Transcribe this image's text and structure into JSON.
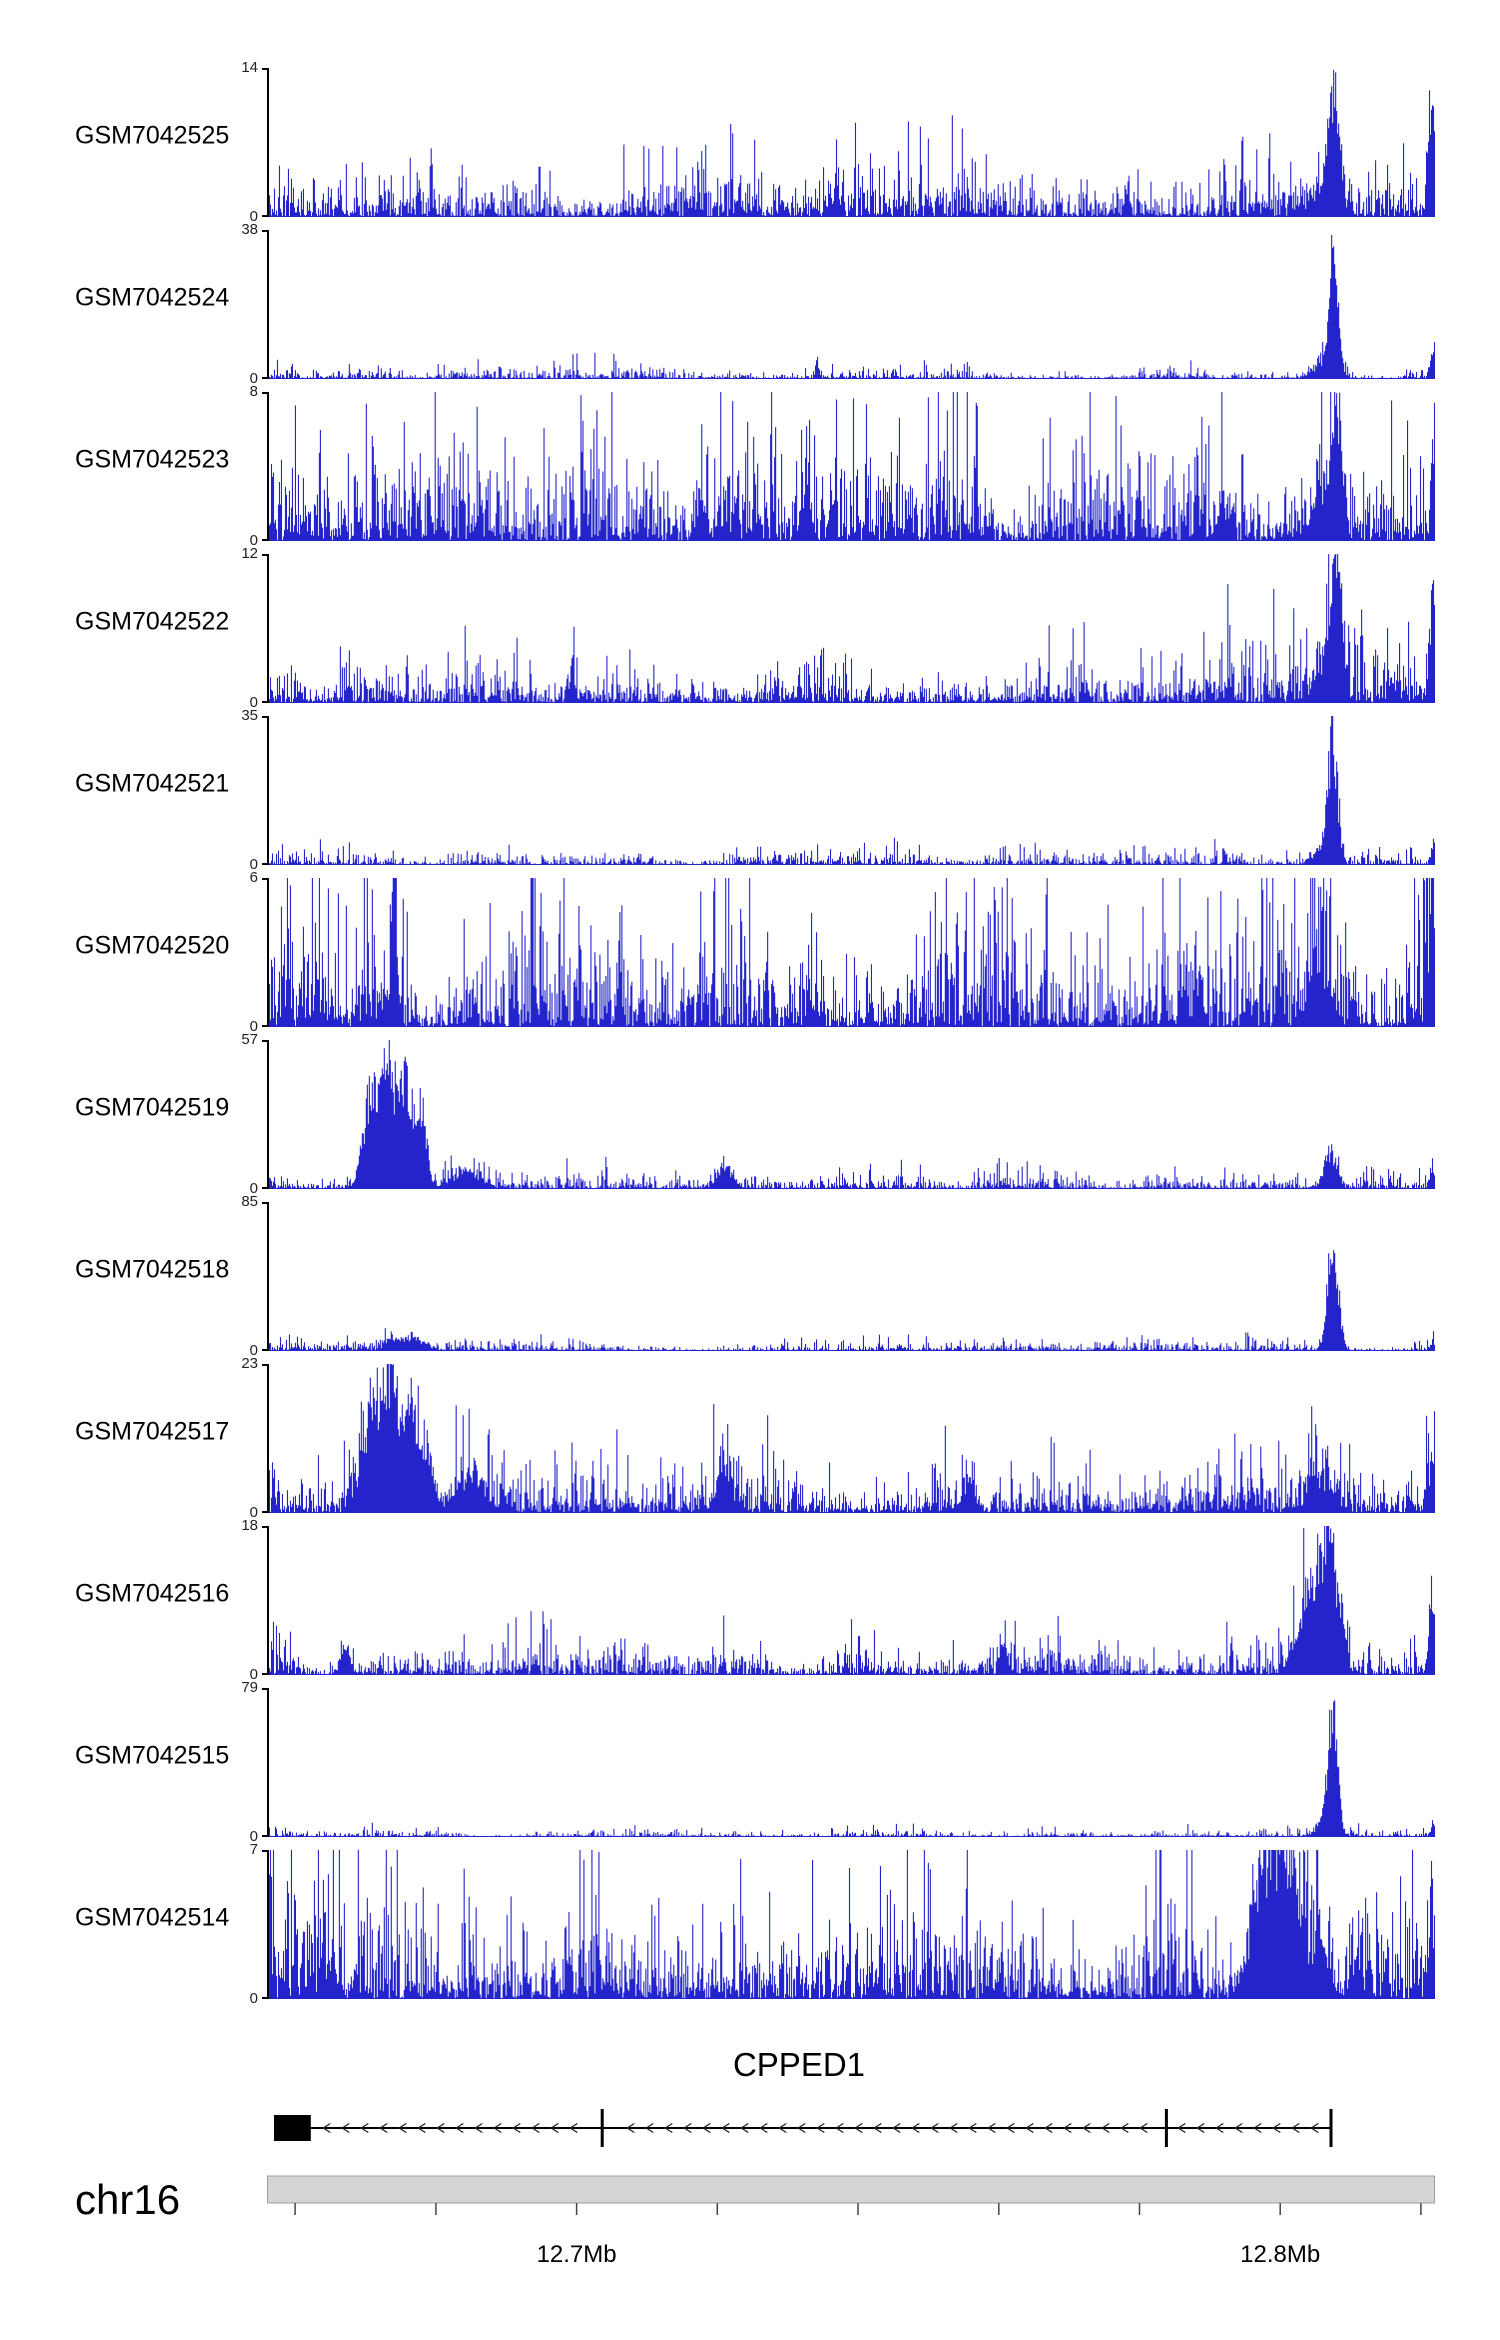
{
  "figure": {
    "signal_color": "#2424cc",
    "background": "#ffffff",
    "axis_color": "#000000",
    "ideogram_fill": "#d4d4d4",
    "ideogram_border": "#9c9c9c"
  },
  "chart_data": {
    "type": "area",
    "subtype": "genome_coverage_tracks",
    "description": "Genome browser view of read-coverage histograms for 12 GEO samples over the CPPED1 locus on chr16 (~12.656-12.822 Mb), minus-strand gene model and chromosome axis below.",
    "x_axis": {
      "chromosome": "chr16",
      "start_mb": 12.656,
      "end_mb": 12.822,
      "unit": "Mb"
    },
    "tracks": [
      {
        "name": "GSM7042525",
        "ylim": [
          0,
          14
        ],
        "noise": 0.085,
        "peak_positions_mb": [
          12.806,
          12.82
        ],
        "peaks": [
          {
            "x": 0.913,
            "w": 0.004,
            "h": 1.0
          },
          {
            "x": 0.904,
            "w": 0.012,
            "h": 0.22
          },
          {
            "x": 0.998,
            "w": 0.0032,
            "h": 1.0
          },
          {
            "x": 0.735,
            "w": 0.002,
            "h": 0.22
          },
          {
            "x": 0.485,
            "w": 0.002,
            "h": 0.18
          }
        ]
      },
      {
        "name": "GSM7042524",
        "ylim": [
          0,
          38
        ],
        "noise": 0.022,
        "peak_positions_mb": [
          12.806
        ],
        "peaks": [
          {
            "x": 0.913,
            "w": 0.0035,
            "h": 1.0
          },
          {
            "x": 0.906,
            "w": 0.009,
            "h": 0.15
          },
          {
            "x": 0.998,
            "w": 0.002,
            "h": 0.22
          },
          {
            "x": 0.47,
            "w": 0.0015,
            "h": 0.16
          }
        ]
      },
      {
        "name": "GSM7042523",
        "ylim": [
          0,
          8
        ],
        "noise": 0.22,
        "peak_positions_mb": [
          12.806,
          12.82
        ],
        "peaks": [
          {
            "x": 0.915,
            "w": 0.0035,
            "h": 0.8
          },
          {
            "x": 0.905,
            "w": 0.008,
            "h": 0.45
          },
          {
            "x": 0.46,
            "w": 0.0035,
            "h": 0.45
          },
          {
            "x": 0.37,
            "w": 0.003,
            "h": 0.35
          },
          {
            "x": 0.999,
            "w": 0.0022,
            "h": 1.0
          }
        ]
      },
      {
        "name": "GSM7042522",
        "ylim": [
          0,
          12
        ],
        "noise": 0.105,
        "peak_positions_mb": [
          12.806,
          12.82
        ],
        "peaks": [
          {
            "x": 0.915,
            "w": 0.004,
            "h": 1.0
          },
          {
            "x": 0.907,
            "w": 0.01,
            "h": 0.28
          },
          {
            "x": 0.998,
            "w": 0.003,
            "h": 0.85
          },
          {
            "x": 0.26,
            "w": 0.002,
            "h": 0.3
          }
        ]
      },
      {
        "name": "GSM7042521",
        "ylim": [
          0,
          35
        ],
        "noise": 0.026,
        "peak_positions_mb": [
          12.805
        ],
        "peaks": [
          {
            "x": 0.912,
            "w": 0.004,
            "h": 1.0
          },
          {
            "x": 0.904,
            "w": 0.008,
            "h": 0.14
          },
          {
            "x": 0.998,
            "w": 0.002,
            "h": 0.18
          }
        ]
      },
      {
        "name": "GSM7042520",
        "ylim": [
          0,
          6
        ],
        "noise": 0.28,
        "peak_positions_mb": [
          12.674,
          12.804
        ],
        "peaks": [
          {
            "x": 0.106,
            "w": 0.0025,
            "h": 1.0
          },
          {
            "x": 0.9,
            "w": 0.009,
            "h": 0.42
          },
          {
            "x": 0.997,
            "w": 0.003,
            "h": 0.75
          },
          {
            "x": 0.3,
            "w": 0.002,
            "h": 0.45
          }
        ]
      },
      {
        "name": "GSM7042519",
        "ylim": [
          0,
          57
        ],
        "noise": 0.032,
        "peak_positions_mb": [
          12.673,
          12.685,
          12.72,
          12.805
        ],
        "peaks": [
          {
            "x": 0.088,
            "w": 0.007,
            "h": 0.82
          },
          {
            "x": 0.103,
            "w": 0.006,
            "h": 1.0
          },
          {
            "x": 0.118,
            "w": 0.0055,
            "h": 0.85
          },
          {
            "x": 0.131,
            "w": 0.004,
            "h": 0.55
          },
          {
            "x": 0.168,
            "w": 0.012,
            "h": 0.14
          },
          {
            "x": 0.39,
            "w": 0.006,
            "h": 0.2
          },
          {
            "x": 0.91,
            "w": 0.005,
            "h": 0.33
          },
          {
            "x": 0.997,
            "w": 0.002,
            "h": 0.12
          }
        ]
      },
      {
        "name": "GSM7042518",
        "ylim": [
          0,
          85
        ],
        "noise": 0.018,
        "peak_positions_mb": [
          12.676,
          12.806
        ],
        "peaks": [
          {
            "x": 0.912,
            "w": 0.0045,
            "h": 1.0
          },
          {
            "x": 0.124,
            "w": 0.01,
            "h": 0.1
          },
          {
            "x": 0.105,
            "w": 0.006,
            "h": 0.07
          },
          {
            "x": 0.998,
            "w": 0.002,
            "h": 0.08
          }
        ]
      },
      {
        "name": "GSM7042517",
        "ylim": [
          0,
          23
        ],
        "noise": 0.095,
        "peak_positions_mb": [
          12.673,
          12.685,
          12.72,
          12.804
        ],
        "peaks": [
          {
            "x": 0.088,
            "w": 0.008,
            "h": 0.72
          },
          {
            "x": 0.104,
            "w": 0.006,
            "h": 1.0
          },
          {
            "x": 0.12,
            "w": 0.006,
            "h": 0.78
          },
          {
            "x": 0.135,
            "w": 0.005,
            "h": 0.45
          },
          {
            "x": 0.172,
            "w": 0.012,
            "h": 0.26
          },
          {
            "x": 0.39,
            "w": 0.006,
            "h": 0.32
          },
          {
            "x": 0.6,
            "w": 0.005,
            "h": 0.2
          },
          {
            "x": 0.9,
            "w": 0.009,
            "h": 0.28
          },
          {
            "x": 0.998,
            "w": 0.0025,
            "h": 0.5
          }
        ]
      },
      {
        "name": "GSM7042516",
        "ylim": [
          0,
          18
        ],
        "noise": 0.06,
        "peak_positions_mb": [
          12.803,
          12.82
        ],
        "peaks": [
          {
            "x": 0.893,
            "w": 0.01,
            "h": 0.7
          },
          {
            "x": 0.908,
            "w": 0.005,
            "h": 1.0
          },
          {
            "x": 0.919,
            "w": 0.004,
            "h": 0.5
          },
          {
            "x": 0.998,
            "w": 0.003,
            "h": 0.6
          },
          {
            "x": 0.63,
            "w": 0.003,
            "h": 0.22
          },
          {
            "x": 0.065,
            "w": 0.004,
            "h": 0.2
          }
        ]
      },
      {
        "name": "GSM7042515",
        "ylim": [
          0,
          79
        ],
        "noise": 0.013,
        "peak_positions_mb": [
          12.806
        ],
        "peaks": [
          {
            "x": 0.912,
            "w": 0.004,
            "h": 1.0
          },
          {
            "x": 0.905,
            "w": 0.007,
            "h": 0.13
          },
          {
            "x": 0.998,
            "w": 0.002,
            "h": 0.09
          }
        ]
      },
      {
        "name": "GSM7042514",
        "ylim": [
          0,
          7
        ],
        "noise": 0.27,
        "peak_positions_mb": [
          12.797,
          12.8,
          12.805
        ],
        "peaks": [
          {
            "x": 0.845,
            "w": 0.008,
            "h": 0.5
          },
          {
            "x": 0.855,
            "w": 0.006,
            "h": 0.95
          },
          {
            "x": 0.868,
            "w": 0.005,
            "h": 1.0
          },
          {
            "x": 0.88,
            "w": 0.005,
            "h": 0.85
          },
          {
            "x": 0.9,
            "w": 0.007,
            "h": 0.5
          },
          {
            "x": 0.93,
            "w": 0.004,
            "h": 0.3
          },
          {
            "x": 0.997,
            "w": 0.003,
            "h": 0.6
          }
        ]
      }
    ],
    "gene_track": {
      "title": "CPPED1",
      "strand": "-",
      "line_start": 0.006,
      "line_end": 0.911,
      "terminal_exon": {
        "start": 0.006,
        "end": 0.0375
      },
      "exon_marks": [
        0.287,
        0.77,
        0.911
      ],
      "arrow_spacing_px": 19
    },
    "chromosome_axis": {
      "label": "chr16",
      "start_mb": 12.656,
      "end_mb": 12.822,
      "tick_step_mb": 0.02,
      "first_tick_mb": 12.66,
      "last_tick_mb": 12.82,
      "labeled_ticks": [
        {
          "value": 12.7,
          "label": "12.7Mb"
        },
        {
          "value": 12.8,
          "label": "12.8Mb"
        }
      ]
    }
  }
}
